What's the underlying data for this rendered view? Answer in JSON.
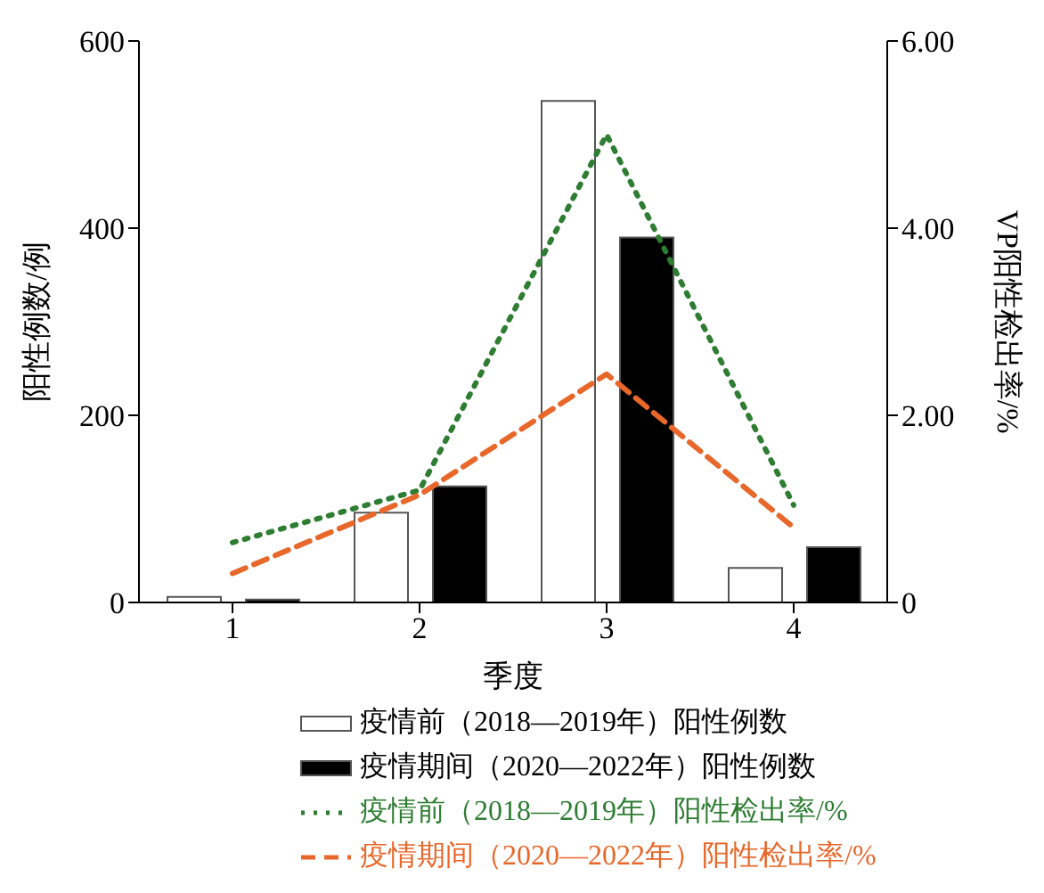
{
  "chart_data": {
    "type": "bar",
    "xlabel": "季度",
    "ylabel": "阳性例数/例",
    "y2label": "VP阳性检出率/%",
    "categories": [
      "1",
      "2",
      "3",
      "4"
    ],
    "series": [
      {
        "name": "疫情前（2018—2019年）阳性例数",
        "color": "#ffffff",
        "values": [
          6,
          96,
          536,
          37
        ]
      },
      {
        "name": "疫情期间（2020—2022年）阳性例数",
        "color": "#000000",
        "values": [
          3,
          124,
          390,
          59
        ]
      },
      {
        "name": "疫情前（2018—2019年）阳性检出率/%",
        "type": "line",
        "axis": "y2",
        "color": "#2e7d32",
        "line_style": "dotted",
        "values": [
          0.64,
          1.2,
          5.0,
          1.04
        ]
      },
      {
        "name": "疫情期间（2020—2022年）阳性检出率/%",
        "type": "line",
        "axis": "y2",
        "color": "#e8672a",
        "line_style": "dashed",
        "values": [
          0.31,
          1.15,
          2.44,
          0.8
        ]
      }
    ],
    "ylim": [
      0,
      600
    ],
    "yticks": [
      0,
      200,
      400,
      600
    ],
    "y2lim": [
      0,
      6
    ],
    "y2ticks": [
      {
        "value": 0,
        "label": "0"
      },
      {
        "value": 2,
        "label": "2.00"
      },
      {
        "value": 4,
        "label": "4.00"
      },
      {
        "value": 6,
        "label": "6.00"
      }
    ],
    "grid": false,
    "legend": "bottom",
    "marker": "none"
  }
}
